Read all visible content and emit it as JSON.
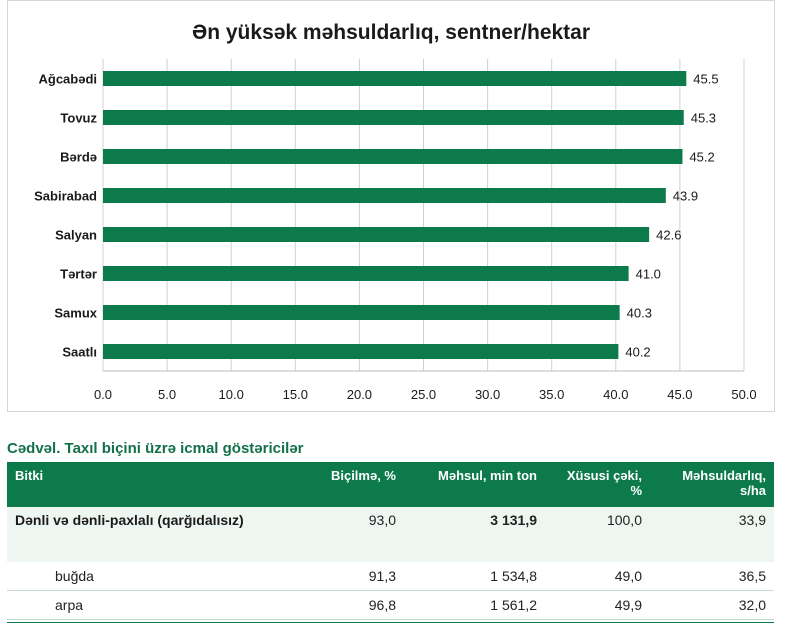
{
  "chart_data": {
    "type": "bar",
    "orientation": "horizontal",
    "title": "Ən yüksək məhsuldarlıq, sentner/hektar",
    "categories": [
      "Ağcabədi",
      "Tovuz",
      "Bərdə",
      "Sabirabad",
      "Salyan",
      "Tərtər",
      "Samux",
      "Saatlı"
    ],
    "values": [
      45.5,
      45.3,
      45.2,
      43.9,
      42.6,
      41.0,
      40.3,
      40.2
    ],
    "value_labels": [
      "45.5",
      "45.3",
      "45.2",
      "43.9",
      "42.6",
      "41.0",
      "40.3",
      "40.2"
    ],
    "xlim": [
      0,
      50
    ],
    "x_ticks": [
      "0.0",
      "5.0",
      "10.0",
      "15.0",
      "20.0",
      "25.0",
      "30.0",
      "35.0",
      "40.0",
      "45.0",
      "50.0"
    ],
    "grid": true,
    "bar_color": "#0d7a4c"
  },
  "table": {
    "caption": "Cədvəl. Taxıl biçini üzrə icmal göstəricilər",
    "headers": {
      "crop": "Bitki",
      "harvest": "Biçilmə, %",
      "product": "Məhsul, min ton",
      "share": "Xüsusi çəki, %",
      "yield": "Məhsuldarlıq, s/ha"
    },
    "rows": [
      {
        "name": "Dənli və dənli-paxlalı (qarğıdalısız)",
        "harvest": "93,0",
        "product": "3 131,9",
        "share": "100,0",
        "yield": "33,9"
      },
      {
        "name": "buğda",
        "harvest": "91,3",
        "product": "1 534,8",
        "share": "49,0",
        "yield": "36,5"
      },
      {
        "name": "arpa",
        "harvest": "96,8",
        "product": "1 561,2",
        "share": "49,9",
        "yield": "32,0"
      }
    ]
  }
}
